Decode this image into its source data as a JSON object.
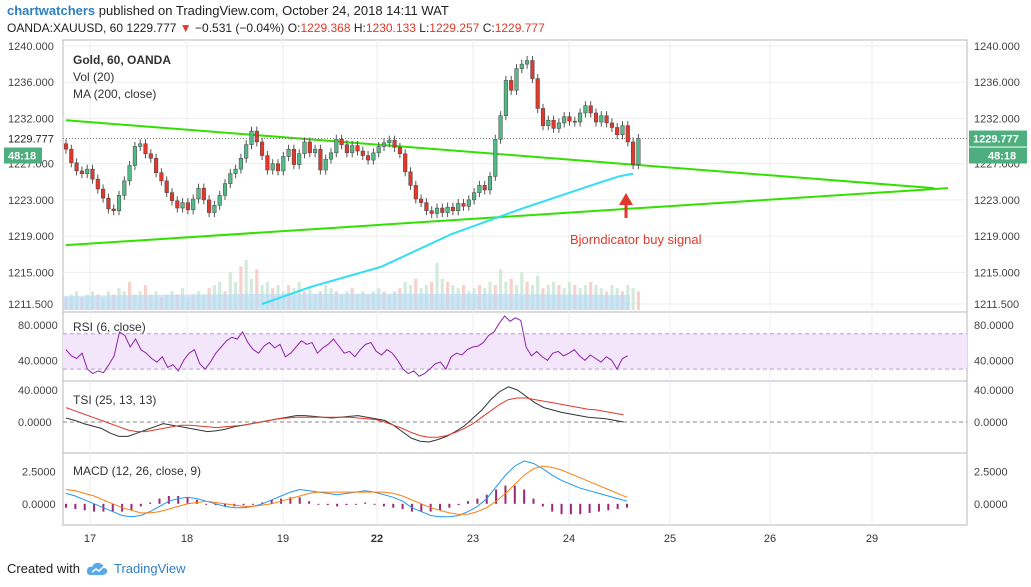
{
  "header": {
    "user": "chartwatchers",
    "published": " published on TradingView.com, October 24, 2018 14:11 WAT",
    "symbol": "OANDA:XAUUSD, 60",
    "last": "1229.777",
    "change": "−0.531 (−0.04%)",
    "o_label": "O:",
    "o_value": "1229.368",
    "h_label": "H:",
    "h_value": "1230.133",
    "l_label": "L:",
    "l_value": "1229.257",
    "c_label": "C:",
    "c_value": "1229.777"
  },
  "footer": {
    "created_with": "Created with",
    "brand": "TradingView"
  },
  "colors": {
    "up": "#53b987",
    "down": "#e0392b",
    "trend": "#33e000",
    "ma": "#33ddf5",
    "rsi": "#8e24aa",
    "rsi_band": "#f3e5fa",
    "tsi_signal": "#e0392b",
    "tsi_line": "#333333",
    "macd_line": "#2196f3",
    "macd_signal": "#ff7f0e",
    "hist": "#9c2775",
    "annotation": "#e0392b",
    "label_bg": "#4caf7d",
    "grid": "#ededed"
  },
  "chart_data": [
    {
      "type": "candlestick",
      "title": "Gold, 60, OANDA",
      "legend": [
        "Gold, 60, OANDA",
        "Vol (20)",
        "MA (200, close)"
      ],
      "yticks": [
        "1240.000",
        "1236.000",
        "1232.000",
        "1227.000",
        "1223.000",
        "1219.000",
        "1215.000",
        "1211.500"
      ],
      "ylim": [
        1211.5,
        1240.0
      ],
      "last_price_label": "1229.777",
      "countdown_label": "48:18",
      "close_series": [
        1228.6,
        1227.1,
        1226.2,
        1225.9,
        1226.4,
        1225.3,
        1224.2,
        1223.2,
        1222.0,
        1221.8,
        1223.5,
        1225.1,
        1226.8,
        1228.9,
        1229.2,
        1228.1,
        1227.6,
        1226.0,
        1225.1,
        1223.8,
        1222.9,
        1222.1,
        1222.7,
        1221.9,
        1223.1,
        1224.3,
        1223.0,
        1221.6,
        1222.4,
        1223.5,
        1224.8,
        1225.9,
        1226.4,
        1227.6,
        1229.1,
        1230.6,
        1229.4,
        1227.9,
        1226.3,
        1227.0,
        1226.2,
        1227.8,
        1228.6,
        1226.9,
        1228.1,
        1229.4,
        1228.2,
        1228.6,
        1226.3,
        1227.5,
        1228.2,
        1229.7,
        1229.1,
        1228.2,
        1229.0,
        1228.4,
        1227.9,
        1227.4,
        1228.2,
        1228.9,
        1229.3,
        1229.6,
        1228.8,
        1228.1,
        1226.1,
        1224.6,
        1223.1,
        1222.7,
        1221.8,
        1221.5,
        1222.1,
        1221.6,
        1222.2,
        1221.8,
        1222.6,
        1222.3,
        1223.0,
        1223.8,
        1224.6,
        1224.1,
        1225.6,
        1229.7,
        1232.3,
        1236.2,
        1235.1,
        1237.5,
        1238.0,
        1238.4,
        1236.4,
        1233.1,
        1231.2,
        1231.8,
        1230.9,
        1231.5,
        1232.2,
        1231.7,
        1231.6,
        1232.6,
        1233.4,
        1232.6,
        1231.6,
        1232.3,
        1231.5,
        1231.0,
        1230.2,
        1231.2,
        1229.4,
        1226.9,
        1229.777
      ],
      "ma200": [
        [
          56,
          1211.5
        ],
        [
          70,
          1213.4
        ],
        [
          90,
          1215.6
        ],
        [
          110,
          1219.2
        ],
        [
          130,
          1222.0
        ],
        [
          150,
          1224.6
        ],
        [
          158,
          1225.6
        ],
        [
          162,
          1225.9
        ]
      ],
      "trendlines": [
        {
          "from": [
            0,
            1231.8
          ],
          "to": [
            248,
            1224.3
          ]
        },
        {
          "from": [
            0,
            1218.0
          ],
          "to": [
            252,
            1224.3
          ]
        }
      ],
      "volume": [
        4,
        5,
        6,
        4,
        5,
        6,
        5,
        4,
        6,
        5,
        7,
        6,
        9,
        5,
        6,
        8,
        5,
        6,
        4,
        5,
        6,
        5,
        7,
        4,
        5,
        6,
        5,
        7,
        8,
        9,
        6,
        12,
        9,
        14,
        16,
        10,
        13,
        8,
        9,
        7,
        8,
        6,
        8,
        7,
        9,
        6,
        7,
        5,
        6,
        8,
        7,
        6,
        5,
        6,
        7,
        5,
        6,
        5,
        6,
        7,
        6,
        5,
        6,
        7,
        9,
        8,
        10,
        7,
        8,
        9,
        15,
        10,
        9,
        8,
        7,
        8,
        6,
        7,
        8,
        7,
        9,
        8,
        13,
        9,
        10,
        8,
        12,
        9,
        8,
        11,
        7,
        8,
        9,
        8,
        7,
        9,
        8,
        7,
        8,
        9,
        8,
        7,
        6,
        8,
        7,
        6,
        8,
        7,
        6
      ],
      "annotation": "Bjorndicator buy signal"
    },
    {
      "type": "line",
      "title": "RSI (6, close)",
      "yticks": [
        "80.0000",
        "40.0000"
      ],
      "ylim": [
        20,
        90
      ],
      "band": [
        30,
        70
      ],
      "values": [
        52,
        45,
        42,
        48,
        30,
        25,
        28,
        26,
        35,
        45,
        72,
        68,
        55,
        64,
        52,
        48,
        42,
        38,
        44,
        32,
        35,
        28,
        40,
        48,
        52,
        36,
        30,
        38,
        48,
        55,
        62,
        66,
        64,
        72,
        60,
        52,
        48,
        56,
        60,
        54,
        58,
        44,
        48,
        55,
        62,
        58,
        60,
        48,
        54,
        58,
        64,
        56,
        48,
        50,
        44,
        52,
        58,
        60,
        50,
        46,
        52,
        48,
        40,
        30,
        25,
        28,
        22,
        25,
        30,
        36,
        38,
        30,
        44,
        48,
        46,
        52,
        55,
        56,
        60,
        68,
        72,
        82,
        90,
        84,
        88,
        85,
        55,
        45,
        50,
        44,
        40,
        48,
        50,
        45,
        48,
        52,
        45,
        40,
        46,
        42,
        38,
        44,
        40,
        30,
        42,
        45
      ]
    },
    {
      "type": "line",
      "title": "TSI (25, 13, 13)",
      "yticks": [
        "40.0000",
        "0.0000"
      ],
      "ylim": [
        -35,
        45
      ],
      "series": [
        {
          "values": [
            5,
            2,
            -2,
            -5,
            -8,
            -14,
            -18,
            -18,
            -14,
            -10,
            -6,
            -2,
            -4,
            -6,
            -8,
            -10,
            -12,
            -11,
            -9,
            -6,
            -4,
            -2,
            0,
            2,
            4,
            6,
            8,
            8,
            7,
            6,
            5,
            6,
            7,
            8,
            6,
            4,
            2,
            -4,
            -12,
            -20,
            -24,
            -25,
            -22,
            -18,
            -12,
            -5,
            5,
            15,
            28,
            38,
            44,
            40,
            32,
            24,
            18,
            15,
            12,
            10,
            8,
            6,
            5,
            4,
            2,
            0
          ]
        },
        {
          "values": [
            18,
            14,
            10,
            6,
            2,
            -2,
            -6,
            -10,
            -12,
            -12,
            -10,
            -8,
            -6,
            -4,
            -4,
            -5,
            -6,
            -7,
            -6,
            -5,
            -4,
            -2,
            0,
            2,
            4,
            5,
            6,
            6,
            6,
            6,
            6,
            6,
            6,
            5,
            4,
            3,
            0,
            -4,
            -8,
            -13,
            -17,
            -19,
            -19,
            -17,
            -13,
            -8,
            -2,
            6,
            14,
            22,
            28,
            30,
            30,
            28,
            26,
            24,
            22,
            20,
            18,
            16,
            15,
            13,
            11,
            9
          ]
        }
      ]
    },
    {
      "type": "line",
      "title": "MACD (12, 26, close, 9)",
      "yticks": [
        "2.5000",
        "0.0000"
      ],
      "ylim": [
        -1.4,
        3.6
      ],
      "series": [
        {
          "values": [
            0.8,
            0.6,
            0.3,
            0.0,
            -0.3,
            -0.6,
            -0.9,
            -1.0,
            -0.9,
            -0.6,
            -0.2,
            0.2,
            0.4,
            0.5,
            0.4,
            0.2,
            0.0,
            -0.2,
            -0.3,
            -0.3,
            -0.2,
            0.0,
            0.3,
            0.6,
            0.9,
            1.1,
            1.0,
            0.9,
            0.8,
            0.7,
            0.8,
            0.9,
            1.0,
            0.9,
            0.7,
            0.5,
            0.2,
            -0.3,
            -0.6,
            -0.9,
            -1.0,
            -1.0,
            -0.9,
            -0.6,
            -0.2,
            0.4,
            1.3,
            2.2,
            2.9,
            3.3,
            3.1,
            2.7,
            2.2,
            1.8,
            1.5,
            1.2,
            1.0,
            0.8,
            0.6,
            0.4,
            0.2
          ]
        },
        {
          "values": [
            1.1,
            1.0,
            0.8,
            0.6,
            0.3,
            0.0,
            -0.3,
            -0.5,
            -0.7,
            -0.7,
            -0.6,
            -0.4,
            -0.2,
            0.0,
            0.1,
            0.2,
            0.1,
            0.0,
            -0.1,
            -0.2,
            -0.2,
            -0.1,
            0.0,
            0.2,
            0.4,
            0.6,
            0.8,
            0.9,
            0.9,
            0.9,
            0.9,
            0.9,
            0.9,
            0.9,
            0.9,
            0.8,
            0.6,
            0.3,
            0.0,
            -0.3,
            -0.5,
            -0.7,
            -0.8,
            -0.8,
            -0.6,
            -0.3,
            0.2,
            0.8,
            1.5,
            2.2,
            2.7,
            2.9,
            2.8,
            2.6,
            2.3,
            2.0,
            1.7,
            1.4,
            1.1,
            0.8,
            0.5
          ]
        }
      ],
      "histogram": [
        -0.3,
        -0.4,
        -0.5,
        -0.6,
        -0.6,
        -0.6,
        -0.6,
        -0.5,
        -0.2,
        0.1,
        0.4,
        0.6,
        0.6,
        0.5,
        0.3,
        0.0,
        -0.1,
        -0.2,
        -0.2,
        -0.1,
        0.0,
        0.1,
        0.3,
        0.4,
        0.5,
        0.5,
        0.2,
        0.0,
        -0.1,
        -0.2,
        -0.1,
        0.0,
        0.1,
        0.0,
        -0.2,
        -0.3,
        -0.4,
        -0.6,
        -0.6,
        -0.6,
        -0.5,
        -0.3,
        -0.1,
        0.2,
        0.4,
        0.7,
        1.1,
        1.4,
        1.4,
        1.1,
        0.4,
        -0.2,
        -0.6,
        -0.8,
        -0.8,
        -0.8,
        -0.7,
        -0.6,
        -0.5,
        -0.4,
        -0.3
      ],
      "xticks": [
        "17",
        "18",
        "19",
        "22",
        "23",
        "24",
        "25",
        "26",
        "29"
      ]
    }
  ]
}
